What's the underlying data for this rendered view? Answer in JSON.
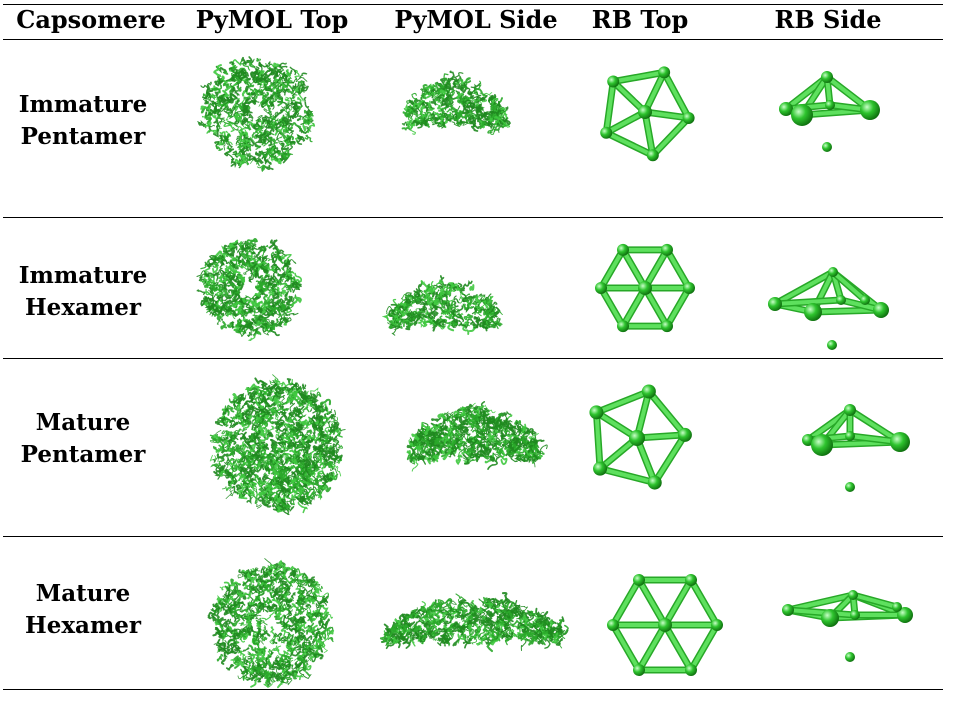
{
  "table": {
    "headers": [
      "Capsomere",
      "PyMOL Top",
      "PyMOL Side",
      "RB Top",
      "RB Side"
    ],
    "rows": [
      {
        "label_line1": "Immature",
        "label_line2": "Pentamer",
        "kind": "pentamer"
      },
      {
        "label_line1": "Immature",
        "label_line2": "Hexamer",
        "kind": "hexamer"
      },
      {
        "label_line1": "Mature",
        "label_line2": "Pentamer",
        "kind": "pentamer"
      },
      {
        "label_line1": "Mature",
        "label_line2": "Hexamer",
        "kind": "hexamer"
      }
    ]
  },
  "colors": {
    "protein_dark": "#1f8a1f",
    "protein_light": "#3fc83f",
    "rb_stick": "#5ee05e",
    "rb_sphere": "#2ec42e"
  },
  "icons": {
    "pymol_top": "protein-ribbon-top-view-image",
    "pymol_side": "protein-ribbon-side-view-image",
    "rb_top": "rigid-body-top-view-image",
    "rb_side": "rigid-body-side-view-image"
  }
}
